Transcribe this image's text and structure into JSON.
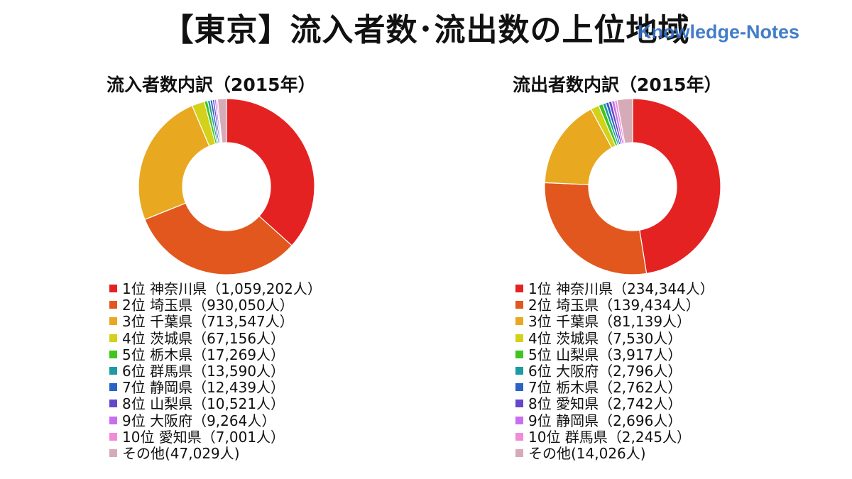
{
  "header": {
    "title": "【東京】流入者数･流出数の上位地域",
    "watermark": "Knowledge-Notes"
  },
  "colors": [
    "#e52222",
    "#e2571d",
    "#e8a921",
    "#d3d11a",
    "#3ec61e",
    "#1d9aa4",
    "#2a63c4",
    "#6547c9",
    "#c76ff0",
    "#f08bd7",
    "#d6abb8"
  ],
  "chart_data": [
    {
      "type": "pie",
      "title": "流入者数内訳（2015年）",
      "categories": [
        "神奈川県",
        "埼玉県",
        "千葉県",
        "茨城県",
        "栃木県",
        "群馬県",
        "静岡県",
        "山梨県",
        "大阪府",
        "愛知県",
        "その他"
      ],
      "values": [
        1059202,
        930050,
        713547,
        67156,
        17269,
        13590,
        12439,
        10521,
        9264,
        7001,
        47029
      ],
      "legend": [
        "1位 神奈川県（1,059,202人）",
        "2位 埼玉県（930,050人）",
        "3位 千葉県（713,547人）",
        "4位 茨城県（67,156人）",
        "5位 栃木県（17,269人）",
        "6位 群馬県（13,590人）",
        "7位 静岡県（12,439人）",
        "8位 山梨県（10,521人）",
        "9位 大阪府（9,264人）",
        "10位 愛知県（7,001人）",
        "その他(47,029人)"
      ]
    },
    {
      "type": "pie",
      "title": "流出者数内訳（2015年）",
      "categories": [
        "神奈川県",
        "埼玉県",
        "千葉県",
        "茨城県",
        "山梨県",
        "大阪府",
        "栃木県",
        "愛知県",
        "静岡県",
        "群馬県",
        "その他"
      ],
      "values": [
        234344,
        139434,
        81139,
        7530,
        3917,
        2796,
        2762,
        2742,
        2696,
        2245,
        14026
      ],
      "legend": [
        "1位 神奈川県（234,344人）",
        "2位 埼玉県（139,434人）",
        "3位 千葉県（81,139人）",
        "4位 茨城県（7,530人）",
        "5位 山梨県（3,917人）",
        "6位 大阪府（2,796人）",
        "7位 栃木県（2,762人）",
        "8位 愛知県（2,742人）",
        "9位 静岡県（2,696人）",
        "10位 群馬県（2,245人）",
        "その他(14,026人)"
      ]
    }
  ]
}
